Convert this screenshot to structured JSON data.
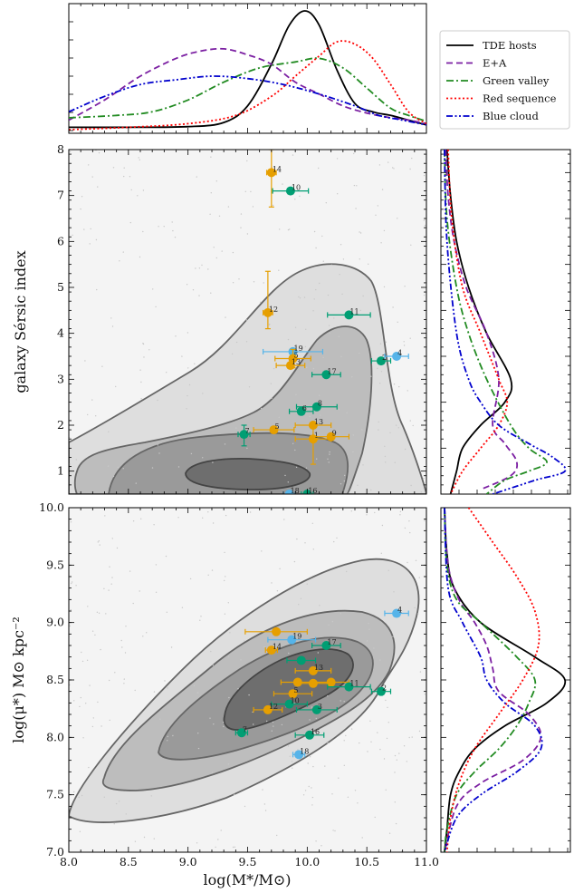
{
  "chart_data": [
    {
      "panel": "top-marginal",
      "type": "line",
      "x_range": [
        8.0,
        11.0
      ],
      "series": [
        {
          "name": "TDE hosts",
          "color": "#000000",
          "dash": "solid",
          "x": [
            8.0,
            8.5,
            9.0,
            9.3,
            9.5,
            9.7,
            9.85,
            9.98,
            10.1,
            10.25,
            10.4,
            10.55,
            10.7,
            10.85,
            11.0
          ],
          "y": [
            0.02,
            0.02,
            0.025,
            0.06,
            0.2,
            0.55,
            0.88,
            1.0,
            0.88,
            0.5,
            0.22,
            0.15,
            0.12,
            0.08,
            0.04
          ]
        },
        {
          "name": "E+A",
          "color": "#7b1fa2",
          "dash": "dashed",
          "x": [
            8.0,
            8.3,
            8.6,
            8.9,
            9.1,
            9.3,
            9.5,
            9.7,
            9.9,
            10.1,
            10.3,
            10.5,
            10.7,
            10.85,
            11.0
          ],
          "y": [
            0.08,
            0.25,
            0.45,
            0.6,
            0.66,
            0.68,
            0.63,
            0.55,
            0.4,
            0.3,
            0.2,
            0.14,
            0.1,
            0.08,
            0.05
          ]
        },
        {
          "name": "Green valley",
          "color": "#228b22",
          "dash": "dashdot",
          "x": [
            8.0,
            8.4,
            8.7,
            9.0,
            9.3,
            9.6,
            9.9,
            10.1,
            10.3,
            10.5,
            10.7,
            10.85,
            11.0
          ],
          "y": [
            0.1,
            0.12,
            0.15,
            0.25,
            0.4,
            0.52,
            0.57,
            0.6,
            0.52,
            0.35,
            0.18,
            0.12,
            0.07
          ]
        },
        {
          "name": "Red sequence",
          "color": "#ff0000",
          "dash": "dotted",
          "x": [
            8.0,
            8.5,
            9.0,
            9.4,
            9.7,
            9.9,
            10.1,
            10.25,
            10.4,
            10.55,
            10.7,
            10.85,
            11.0
          ],
          "y": [
            0.0,
            0.02,
            0.05,
            0.12,
            0.28,
            0.45,
            0.62,
            0.74,
            0.72,
            0.6,
            0.38,
            0.15,
            0.05
          ]
        },
        {
          "name": "Blue cloud",
          "color": "#0000cd",
          "dash": "dashdotdot",
          "x": [
            8.0,
            8.3,
            8.6,
            8.9,
            9.2,
            9.5,
            9.8,
            10.1,
            10.4,
            10.6,
            10.8,
            11.0
          ],
          "y": [
            0.15,
            0.28,
            0.38,
            0.42,
            0.45,
            0.43,
            0.38,
            0.3,
            0.2,
            0.12,
            0.08,
            0.04
          ]
        }
      ]
    },
    {
      "panel": "sersic-scatter",
      "type": "scatter",
      "xlim": [
        8.0,
        11.0
      ],
      "ylim": [
        0.5,
        8.0
      ],
      "ylabel": "galaxy Sérsic index",
      "yticks": [
        1,
        2,
        3,
        4,
        5,
        6,
        7,
        8
      ],
      "points": [
        {
          "label": "14",
          "x": 9.7,
          "y": 7.5,
          "color": "#e69f00",
          "xerr": 0.04,
          "yerr_lo": 0.75,
          "yerr_hi": 0.5
        },
        {
          "label": "10",
          "x": 9.86,
          "y": 7.1,
          "color": "#009e73",
          "xerr": 0.15,
          "yerr_lo": 0.0,
          "yerr_hi": 0.0
        },
        {
          "label": "12",
          "x": 9.67,
          "y": 4.45,
          "color": "#e69f00",
          "xerr": 0.04,
          "yerr_lo": 0.35,
          "yerr_hi": 0.9
        },
        {
          "label": "11",
          "x": 10.35,
          "y": 4.4,
          "color": "#009e73",
          "xerr": 0.18,
          "yerr_lo": 0.0,
          "yerr_hi": 0.0
        },
        {
          "label": "19",
          "x": 9.88,
          "y": 3.6,
          "color": "#56b4e9",
          "xerr": 0.25,
          "yerr_lo": 0.0,
          "yerr_hi": 0.0
        },
        {
          "label": "5",
          "x": 9.88,
          "y": 3.45,
          "color": "#e69f00",
          "xerr": 0.15,
          "yerr_lo": 0.2,
          "yerr_hi": 0.2
        },
        {
          "label": "13",
          "x": 9.86,
          "y": 3.3,
          "color": "#e69f00",
          "xerr": 0.12,
          "yerr_lo": 0.0,
          "yerr_hi": 0.0
        },
        {
          "label": "2",
          "x": 10.62,
          "y": 3.4,
          "color": "#009e73",
          "xerr": 0.08,
          "yerr_lo": 0.0,
          "yerr_hi": 0.0
        },
        {
          "label": "4",
          "x": 10.75,
          "y": 3.5,
          "color": "#56b4e9",
          "xerr": 0.1,
          "yerr_lo": 0.0,
          "yerr_hi": 0.0
        },
        {
          "label": "17",
          "x": 10.16,
          "y": 3.1,
          "color": "#009e73",
          "xerr": 0.12,
          "yerr_lo": 0.0,
          "yerr_hi": 0.0
        },
        {
          "label": "8",
          "x": 10.08,
          "y": 2.4,
          "color": "#009e73",
          "xerr": 0.17,
          "yerr_lo": 0.0,
          "yerr_hi": 0.0
        },
        {
          "label": "6",
          "x": 9.95,
          "y": 2.3,
          "color": "#009e73",
          "xerr": 0.1,
          "yerr_lo": 0.0,
          "yerr_hi": 0.0
        },
        {
          "label": "13",
          "x": 10.05,
          "y": 2.0,
          "color": "#e69f00",
          "xerr": 0.15,
          "yerr_lo": 0.0,
          "yerr_hi": 0.0
        },
        {
          "label": "5",
          "x": 9.72,
          "y": 1.9,
          "color": "#e69f00",
          "xerr": 0.17,
          "yerr_lo": 0.0,
          "yerr_hi": 0.0
        },
        {
          "label": "7",
          "x": 9.47,
          "y": 1.8,
          "color": "#009e73",
          "xerr": 0.05,
          "yerr_lo": 0.25,
          "yerr_hi": 0.2
        },
        {
          "label": "1",
          "x": 10.05,
          "y": 1.7,
          "color": "#e69f00",
          "xerr": 0.15,
          "yerr_lo": 0.55,
          "yerr_hi": 0.3
        },
        {
          "label": "9",
          "x": 10.2,
          "y": 1.75,
          "color": "#e69f00",
          "xerr": 0.15,
          "yerr_lo": 0.0,
          "yerr_hi": 0.0
        },
        {
          "label": "18",
          "x": 9.85,
          "y": 0.5,
          "color": "#56b4e9",
          "xerr": 0.05,
          "yerr_lo": 0.0,
          "yerr_hi": 0.0
        },
        {
          "label": "16",
          "x": 10.0,
          "y": 0.5,
          "color": "#009e73",
          "xerr": 0.05,
          "yerr_lo": 0.0,
          "yerr_hi": 0.0
        }
      ]
    },
    {
      "panel": "sersic-marginal",
      "type": "line",
      "y_range": [
        0.5,
        8.0
      ],
      "series": [
        {
          "name": "TDE hosts",
          "color": "#000000",
          "dash": "solid",
          "y": [
            8.0,
            7.0,
            6.0,
            5.0,
            4.0,
            3.0,
            2.5,
            2.0,
            1.5,
            1.0,
            0.5
          ],
          "x": [
            0.02,
            0.05,
            0.1,
            0.2,
            0.35,
            0.55,
            0.5,
            0.3,
            0.15,
            0.1,
            0.05
          ]
        },
        {
          "name": "E+A",
          "color": "#7b1fa2",
          "dash": "dashed",
          "y": [
            8.0,
            7.0,
            6.0,
            5.0,
            4.0,
            3.0,
            2.0,
            1.6,
            1.2,
            0.9,
            0.6
          ],
          "x": [
            0.01,
            0.03,
            0.08,
            0.18,
            0.35,
            0.45,
            0.4,
            0.5,
            0.6,
            0.55,
            0.3
          ]
        },
        {
          "name": "Green valley",
          "color": "#228b22",
          "dash": "dashdot",
          "y": [
            8.0,
            6.5,
            5.0,
            4.0,
            3.0,
            2.0,
            1.5,
            1.2,
            1.0,
            0.8,
            0.5
          ],
          "x": [
            0.0,
            0.02,
            0.1,
            0.2,
            0.35,
            0.55,
            0.7,
            0.85,
            0.7,
            0.5,
            0.35
          ]
        },
        {
          "name": "Red sequence",
          "color": "#ff0000",
          "dash": "dotted",
          "y": [
            8.0,
            6.5,
            5.0,
            4.0,
            3.0,
            2.5,
            2.0,
            1.5,
            1.0,
            0.5
          ],
          "x": [
            0.03,
            0.06,
            0.15,
            0.3,
            0.45,
            0.52,
            0.45,
            0.3,
            0.15,
            0.05
          ]
        },
        {
          "name": "Blue cloud",
          "color": "#0000cd",
          "dash": "dashdotdot",
          "y": [
            8.0,
            6.0,
            4.0,
            3.0,
            2.5,
            2.0,
            1.6,
            1.3,
            1.0,
            0.8,
            0.5
          ],
          "x": [
            0.0,
            0.02,
            0.1,
            0.2,
            0.3,
            0.45,
            0.7,
            0.9,
            1.0,
            0.75,
            0.4
          ]
        }
      ]
    },
    {
      "panel": "density-scatter",
      "type": "scatter",
      "xlim": [
        8.0,
        11.0
      ],
      "ylim": [
        7.0,
        10.0
      ],
      "xlabel": "log(M*/M⊙)",
      "ylabel": "log(μ*) M⊙ kpc⁻²",
      "xticks": [
        8.0,
        8.5,
        9.0,
        9.5,
        10.0,
        10.5,
        11.0
      ],
      "yticks": [
        7.0,
        7.5,
        8.0,
        8.5,
        9.0,
        9.5,
        10.0
      ],
      "points": [
        {
          "label": "4",
          "x": 10.75,
          "y": 9.08,
          "color": "#56b4e9",
          "xerr": 0.1
        },
        {
          "label": "",
          "x": 9.74,
          "y": 8.92,
          "color": "#e69f00",
          "xerr": 0.26
        },
        {
          "label": "19",
          "x": 9.87,
          "y": 8.85,
          "color": "#56b4e9",
          "xerr": 0.2
        },
        {
          "label": "17",
          "x": 10.16,
          "y": 8.8,
          "color": "#009e73",
          "xerr": 0.12
        },
        {
          "label": "14",
          "x": 9.7,
          "y": 8.76,
          "color": "#e69f00",
          "xerr": 0.05
        },
        {
          "label": "",
          "x": 9.95,
          "y": 8.67,
          "color": "#009e73",
          "xerr": 0.12
        },
        {
          "label": "13",
          "x": 10.05,
          "y": 8.58,
          "color": "#e69f00",
          "xerr": 0.15
        },
        {
          "label": "",
          "x": 9.92,
          "y": 8.48,
          "color": "#e69f00",
          "xerr": 0.14
        },
        {
          "label": "",
          "x": 10.05,
          "y": 8.47,
          "color": "#e69f00",
          "xerr": 0.12
        },
        {
          "label": "",
          "x": 10.2,
          "y": 8.48,
          "color": "#e69f00",
          "xerr": 0.15
        },
        {
          "label": "11",
          "x": 10.35,
          "y": 8.44,
          "color": "#009e73",
          "xerr": 0.18
        },
        {
          "label": "2",
          "x": 10.62,
          "y": 8.4,
          "color": "#009e73",
          "xerr": 0.08
        },
        {
          "label": "5",
          "x": 9.88,
          "y": 8.38,
          "color": "#e69f00",
          "xerr": 0.16
        },
        {
          "label": "10",
          "x": 9.85,
          "y": 8.29,
          "color": "#009e73",
          "xerr": 0.15
        },
        {
          "label": "12",
          "x": 9.67,
          "y": 8.24,
          "color": "#e69f00",
          "xerr": 0.12
        },
        {
          "label": "3",
          "x": 10.08,
          "y": 8.24,
          "color": "#009e73",
          "xerr": 0.17
        },
        {
          "label": "7",
          "x": 9.45,
          "y": 8.04,
          "color": "#009e73",
          "xerr": 0.05
        },
        {
          "label": "16",
          "x": 10.02,
          "y": 8.02,
          "color": "#009e73",
          "xerr": 0.12
        },
        {
          "label": "18",
          "x": 9.93,
          "y": 7.85,
          "color": "#56b4e9",
          "xerr": 0.05
        }
      ]
    },
    {
      "panel": "density-marginal",
      "type": "line",
      "y_range": [
        7.0,
        10.0
      ],
      "series": [
        {
          "name": "TDE hosts",
          "color": "#000000",
          "dash": "solid",
          "y": [
            10.0,
            9.6,
            9.3,
            9.0,
            8.7,
            8.5,
            8.3,
            8.1,
            7.9,
            7.7,
            7.5,
            7.2,
            7.0
          ],
          "x": [
            0.0,
            0.02,
            0.08,
            0.3,
            0.75,
            1.0,
            0.85,
            0.5,
            0.25,
            0.12,
            0.05,
            0.02,
            0.0
          ]
        },
        {
          "name": "E+A",
          "color": "#7b1fa2",
          "dash": "dashed",
          "y": [
            10.0,
            9.5,
            9.2,
            9.0,
            8.8,
            8.6,
            8.4,
            8.2,
            8.0,
            7.8,
            7.6,
            7.4,
            7.0
          ],
          "x": [
            0.0,
            0.03,
            0.12,
            0.25,
            0.35,
            0.4,
            0.45,
            0.7,
            0.8,
            0.65,
            0.3,
            0.1,
            0.0
          ]
        },
        {
          "name": "Green valley",
          "color": "#228b22",
          "dash": "dashdot",
          "y": [
            10.0,
            9.5,
            9.2,
            9.0,
            8.7,
            8.5,
            8.3,
            8.1,
            7.9,
            7.7,
            7.5,
            7.2,
            7.0
          ],
          "x": [
            0.0,
            0.02,
            0.1,
            0.3,
            0.6,
            0.75,
            0.7,
            0.6,
            0.45,
            0.25,
            0.1,
            0.02,
            0.0
          ]
        },
        {
          "name": "Red sequence",
          "color": "#ff0000",
          "dash": "dotted",
          "y": [
            10.0,
            9.7,
            9.4,
            9.1,
            8.8,
            8.5,
            8.2,
            7.9,
            7.6,
            7.3,
            7.0
          ],
          "x": [
            0.2,
            0.4,
            0.6,
            0.75,
            0.78,
            0.65,
            0.45,
            0.25,
            0.12,
            0.05,
            0.02
          ]
        },
        {
          "name": "Blue cloud",
          "color": "#0000cd",
          "dash": "dashdotdot",
          "y": [
            10.0,
            9.3,
            9.0,
            8.7,
            8.5,
            8.3,
            8.1,
            7.9,
            7.7,
            7.5,
            7.3,
            7.0
          ],
          "x": [
            0.0,
            0.03,
            0.15,
            0.3,
            0.35,
            0.5,
            0.75,
            0.8,
            0.6,
            0.3,
            0.1,
            0.0
          ]
        }
      ]
    }
  ],
  "legend": {
    "position": "top-right",
    "entries": [
      {
        "label": "TDE hosts",
        "color": "#000000",
        "dash": "solid"
      },
      {
        "label": "E+A",
        "color": "#7b1fa2",
        "dash": "dashed"
      },
      {
        "label": "Green valley",
        "color": "#228b22",
        "dash": "dashdot"
      },
      {
        "label": "Red sequence",
        "color": "#ff0000",
        "dash": "dotted"
      },
      {
        "label": "Blue cloud",
        "color": "#0000cd",
        "dash": "dashdotdot"
      }
    ]
  },
  "axis_text": {
    "x_title": "log(M*/M⊙)",
    "y_title_sersic": "galaxy Sérsic index",
    "y_title_density": "log(μ*) M⊙ kpc⁻²"
  },
  "colors": {
    "background_panel": "#f4f4f4",
    "contour_levels": [
      "#dedede",
      "#bdbdbd",
      "#9a9a9a",
      "#6e6e6e"
    ],
    "contour_line": "#666666",
    "scatter_dots": "#c8c8c8"
  }
}
